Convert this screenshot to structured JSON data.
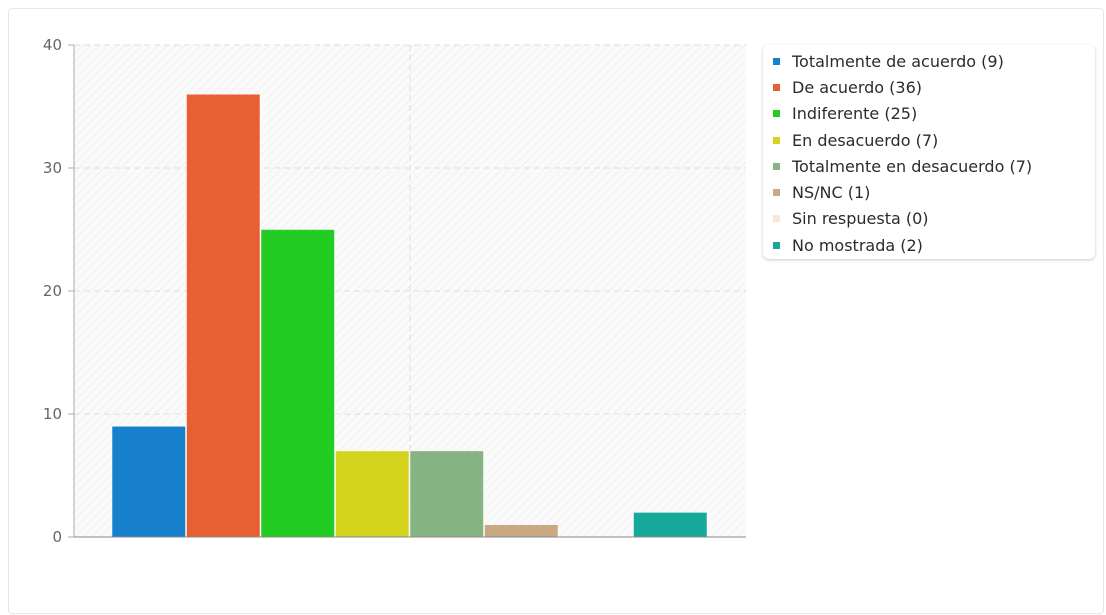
{
  "chart_data": {
    "type": "bar",
    "categories": [
      "Totalmente de acuerdo (9)",
      "De acuerdo (36)",
      "Indiferente (25)",
      "En desacuerdo (7)",
      "Totalmente en desacuerdo (7)",
      "NS/NC (1)",
      "Sin respuesta (0)",
      "No mostrada (2)"
    ],
    "values": [
      9,
      36,
      25,
      7,
      7,
      1,
      0,
      2
    ],
    "colors": [
      "#1680cc",
      "#e85f33",
      "#22cc22",
      "#d4d41f",
      "#86b382",
      "#c9a983",
      "#fbe6d8",
      "#17a89c"
    ],
    "ylim": [
      0,
      40
    ],
    "yticks": [
      "0",
      "10",
      "20",
      "30",
      "40"
    ],
    "grid": true,
    "legend_position": "right",
    "title": "",
    "xlabel": "",
    "ylabel": ""
  }
}
